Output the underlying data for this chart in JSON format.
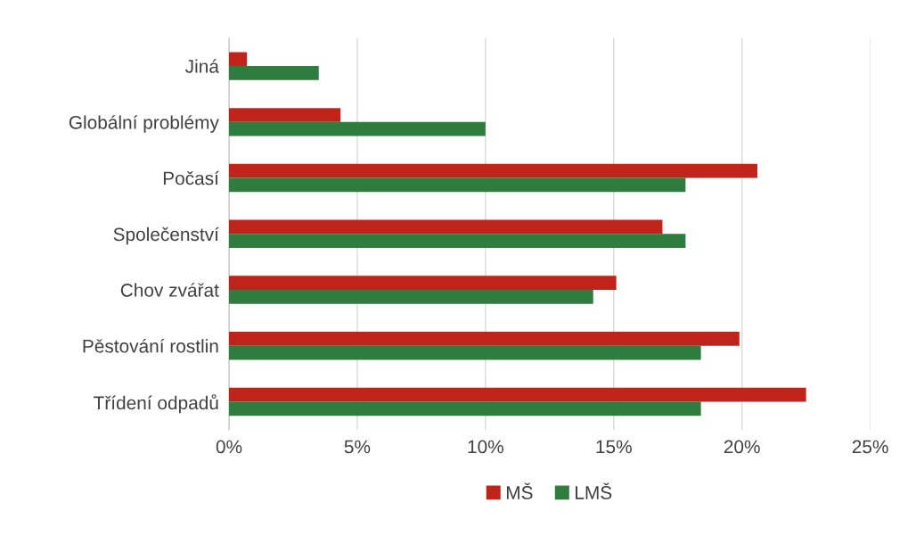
{
  "chart_data": {
    "type": "bar",
    "orientation": "horizontal",
    "categories": [
      "Jiná",
      "Globální problémy",
      "Počasí",
      "Společenství",
      "Chov zvářat",
      "Pěstování rostlin",
      "Třídení odpadů"
    ],
    "series": [
      {
        "name": "MŠ",
        "color": "#c0231a",
        "values": [
          0.7,
          4.35,
          20.6,
          16.9,
          15.1,
          19.9,
          22.5
        ]
      },
      {
        "name": "LMŠ",
        "color": "#2e7d3e",
        "values": [
          3.5,
          10.0,
          17.8,
          17.8,
          14.2,
          18.4,
          18.4
        ]
      }
    ],
    "xlim": [
      0,
      25
    ],
    "xticks": [
      {
        "value": 0,
        "label": "0%"
      },
      {
        "value": 5,
        "label": "5%"
      },
      {
        "value": 10,
        "label": "10%"
      },
      {
        "value": 15,
        "label": "15%"
      },
      {
        "value": 20,
        "label": "20%"
      },
      {
        "value": 25,
        "label": "25%"
      }
    ],
    "grid": "x",
    "legend": "bottom"
  }
}
